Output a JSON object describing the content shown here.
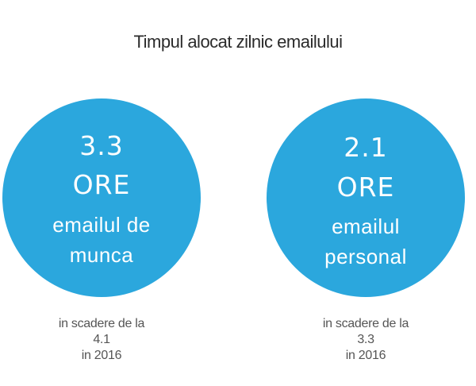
{
  "title": "Timpul alocat zilnic emailului",
  "accent_color": "#2ba7dd",
  "stats": [
    {
      "value": "3.3",
      "unit": "ORE",
      "label_line1": "emailul de",
      "label_line2": "munca",
      "note_line1": "in scadere de la",
      "note_line2": "4.1",
      "note_line3": "in 2016"
    },
    {
      "value": "2.1",
      "unit": "ORE",
      "label_line1": "emailul",
      "label_line2": "personal",
      "note_line1": "in scadere de la",
      "note_line2": "3.3",
      "note_line3": "in 2016"
    }
  ]
}
